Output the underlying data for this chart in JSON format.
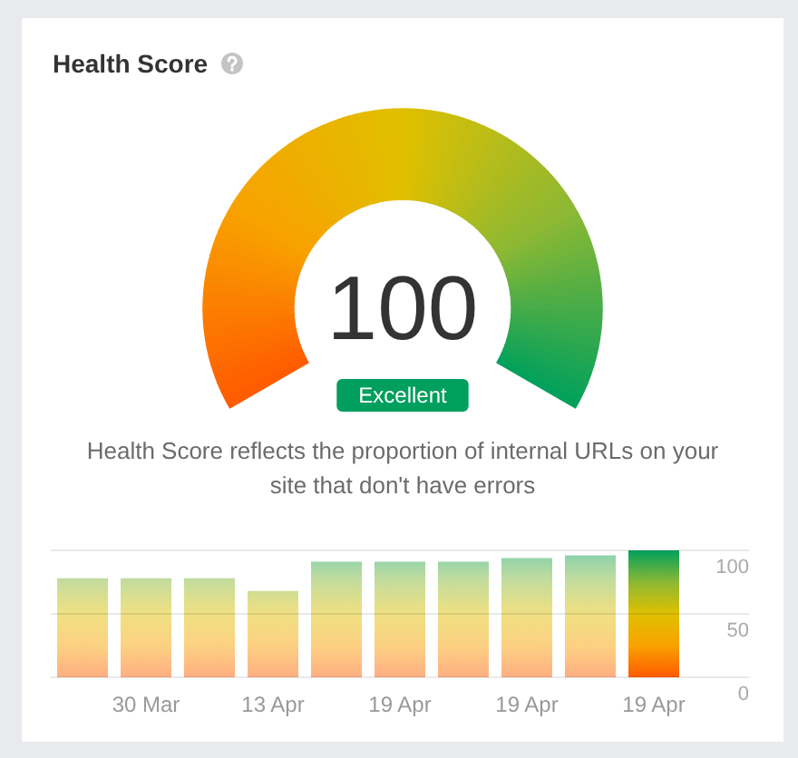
{
  "chart_data": [
    {
      "type": "other",
      "title": "Health Score",
      "values": [
        100
      ],
      "data_labels": true,
      "annotations": [
        "Excellent",
        "Health Score reflects the proportion of internal URLs on your site that don't have errors"
      ]
    },
    {
      "type": "bar",
      "categories": [
        null,
        "30 Mar",
        null,
        "13 Apr",
        null,
        "19 Apr",
        null,
        "19 Apr",
        null,
        "19 Apr"
      ],
      "values": [
        78,
        78,
        78,
        68,
        91,
        91,
        91,
        94,
        96,
        100
      ],
      "colors": [
        "#f0e080",
        "#f0e080",
        "#f0e080",
        "#f0e080",
        "#f0e080",
        "#f0e080",
        "#f0e080",
        "#f0e080",
        "#f0e080",
        "#e0c000"
      ],
      "ylim": [
        0,
        100
      ],
      "yticks": [
        0,
        50,
        100
      ],
      "grid": "y"
    }
  ]
}
